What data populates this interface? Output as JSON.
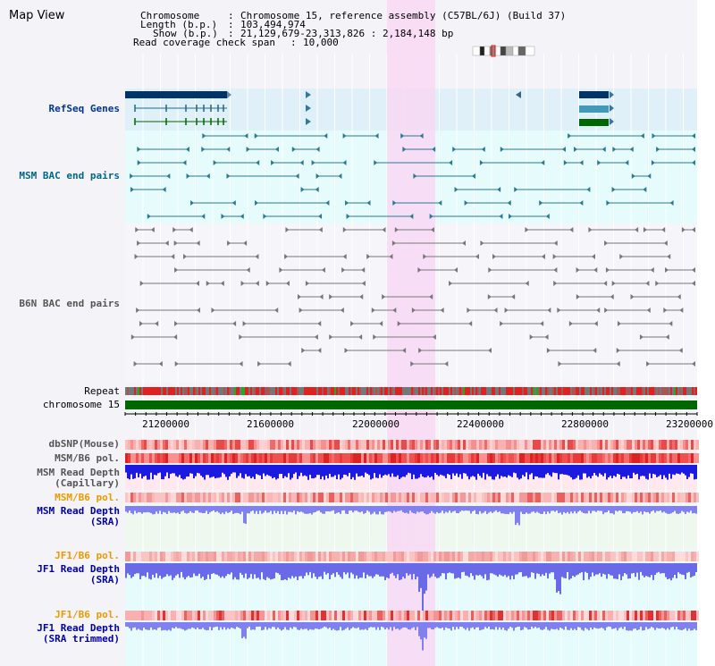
{
  "title": "Map View",
  "header": {
    "chromosome_label": "Chromosome",
    "chromosome_value": "Chromosome 15, reference assembly (C57BL/6J) (Build 37)",
    "length_label": "Length (b.p.)",
    "length_value": "103,494,974",
    "show_label": "Show (b.p.)",
    "show_value": "21,129,679-23,313,826 : 2,184,148 bp",
    "span_label": "Read coverage check span",
    "span_value": "10,000"
  },
  "tracks": {
    "refseq": "RefSeq Genes",
    "msm_bac": "MSM BAC end pairs",
    "b6n_bac": "B6N BAC end pairs",
    "repeat": "Repeat",
    "chromosome": "chromosome 15",
    "dbsnp": "dbSNP(Mouse)",
    "msm_b6_pol_1": "MSM/B6 pol.",
    "msm_depth_cap_1": "MSM Read Depth",
    "msm_depth_cap_2": "(Capillary)",
    "msm_b6_pol_2": "MSM/B6 pol.",
    "msm_depth_sra_1": "MSM Read Depth",
    "msm_depth_sra_2": "(SRA)",
    "jf1_pol_1": "JF1/B6 pol.",
    "jf1_depth_1": "JF1 Read Depth",
    "jf1_depth_2": "(SRA)",
    "jf1_pol_2": "JF1/B6 pol.",
    "jf1_trim_1": "JF1 Read Depth",
    "jf1_trim_2": "(SRA trimmed)"
  },
  "axis_ticks": [
    "21200000",
    "21600000",
    "22000000",
    "22400000",
    "22800000",
    "23200000"
  ],
  "colors": {
    "refseq": "#003366",
    "msm_label": "#006688",
    "b6n_label": "#555555",
    "pol_label": "#ee9900",
    "depth_label": "#0000aa",
    "highlight": "#f8d8f4",
    "depth_bar": "#7a7aee",
    "cap_bar": "#2222dd"
  }
}
